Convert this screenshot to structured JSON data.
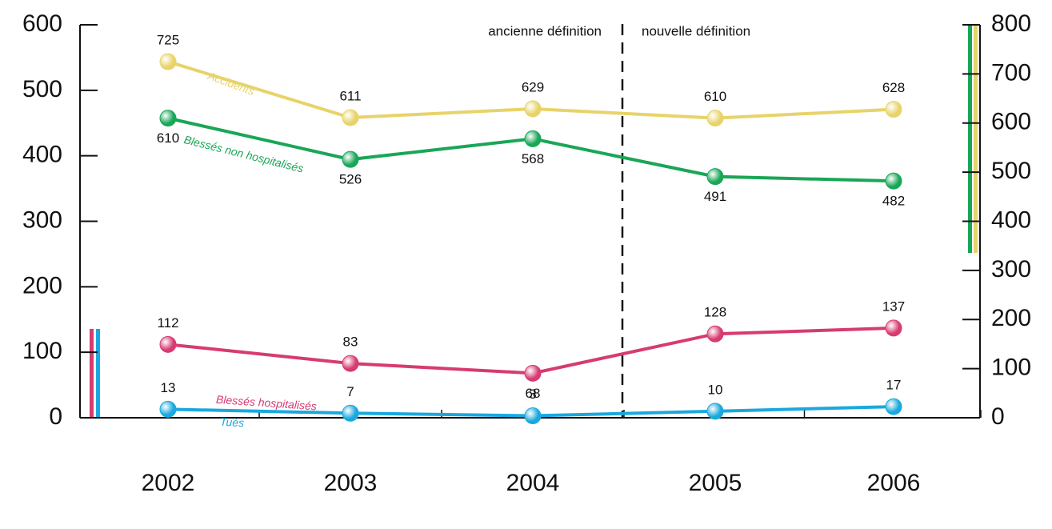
{
  "chart_data": {
    "type": "line",
    "categories": [
      "2002",
      "2003",
      "2004",
      "2005",
      "2006"
    ],
    "annotations": [
      "ancienne définition",
      "nouvelle définition"
    ],
    "series": [
      {
        "name": "Accidents",
        "color": "#e8d36a",
        "axis": "y2",
        "values": [
          725,
          611,
          629,
          610,
          628
        ]
      },
      {
        "name": "Blessés non hospitalisés",
        "color": "#1aa657",
        "axis": "y2",
        "values": [
          610,
          526,
          568,
          491,
          482
        ]
      },
      {
        "name": "Blessés hospitalisés",
        "color": "#d63b72",
        "values": [
          112,
          83,
          68,
          128,
          137
        ]
      },
      {
        "name": "Tués",
        "color": "#1aa8de",
        "values": [
          13,
          7,
          3,
          10,
          17
        ]
      }
    ],
    "ylim": [
      0,
      600
    ],
    "yticks": [
      0,
      100,
      200,
      300,
      400,
      500,
      600
    ],
    "y2lim": [
      0,
      800
    ],
    "y2ticks": [
      0,
      100,
      200,
      300,
      400,
      500,
      600,
      700,
      800
    ]
  }
}
